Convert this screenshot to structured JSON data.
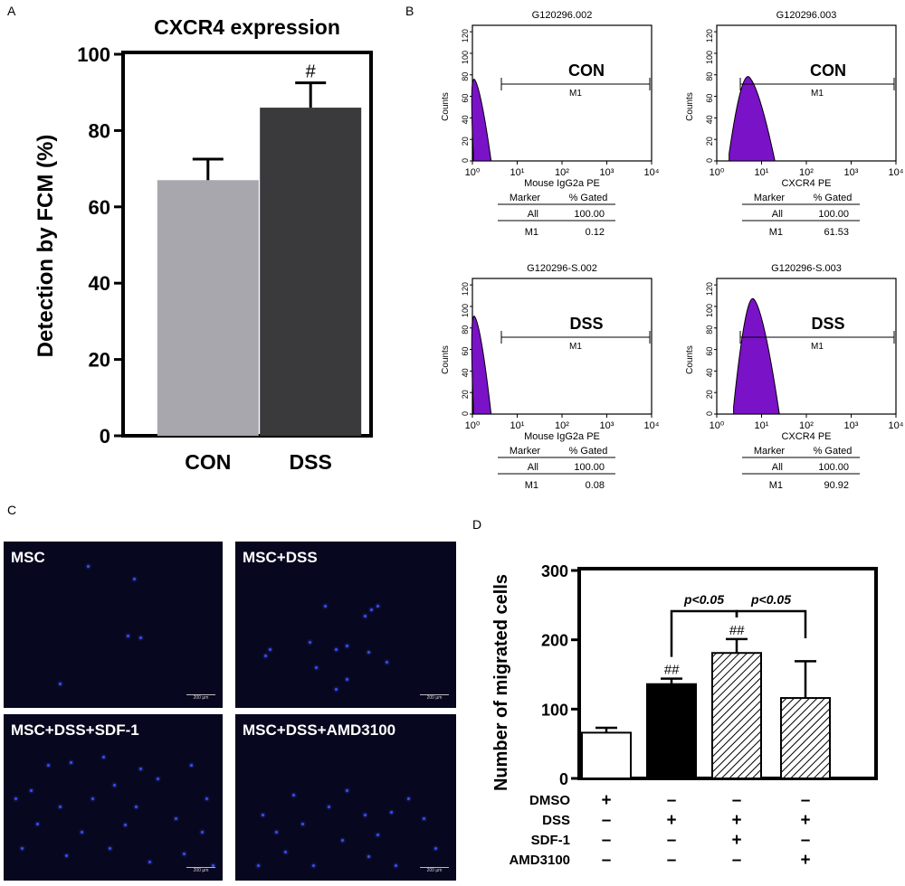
{
  "panels": {
    "a": "A",
    "b": "B",
    "c": "C",
    "d": "D"
  },
  "chart_data": [
    {
      "id": "A",
      "type": "bar",
      "title": "CXCR4 expression",
      "ylabel": "Detection by FCM (%)",
      "xlabel": "",
      "categories": [
        "CON",
        "DSS"
      ],
      "values": [
        67,
        86
      ],
      "errors": [
        5.5,
        6.5
      ],
      "colors": [
        "#a7a7ad",
        "#3a3a3c"
      ],
      "annotations": [
        "",
        "#"
      ],
      "ylim": [
        0,
        100
      ],
      "yticks": [
        "0",
        "20",
        "40",
        "60",
        "80",
        "100"
      ]
    },
    {
      "id": "B",
      "type": "histogram",
      "plots": [
        {
          "sample": "G120296.002",
          "group": "CON",
          "xlabel": "Mouse IgG2a PE",
          "all": "100.00",
          "m1": "0.12",
          "peak_log": 0.05,
          "peak_height": 0.6
        },
        {
          "sample": "G120296.003",
          "group": "CON",
          "xlabel": "CXCR4 PE",
          "all": "100.00",
          "m1": "61.53",
          "peak_log": 0.72,
          "peak_height": 0.62
        },
        {
          "sample": "G120296-S.002",
          "group": "DSS",
          "xlabel": "Mouse IgG2a PE",
          "all": "100.00",
          "m1": "0.08",
          "peak_log": 0.05,
          "peak_height": 0.72
        },
        {
          "sample": "G120296-S.003",
          "group": "DSS",
          "xlabel": "CXCR4 PE",
          "all": "100.00",
          "m1": "90.92",
          "peak_log": 0.82,
          "peak_height": 0.85
        }
      ],
      "ylabel": "Counts",
      "yticks": [
        "0",
        "20",
        "40",
        "60",
        "80",
        "100",
        "120"
      ],
      "xticks": [
        "10⁰",
        "10¹",
        "10²",
        "10³",
        "10⁴"
      ],
      "gate_label": "M1",
      "stats_header": [
        "Marker",
        "% Gated"
      ],
      "row_all": "All",
      "row_m1": "M1"
    },
    {
      "id": "D",
      "type": "bar",
      "ylabel": "Number of migrated cells",
      "values": [
        66,
        136,
        181,
        116
      ],
      "errors": [
        7,
        8,
        20,
        53
      ],
      "fills": [
        "white",
        "black",
        "hatch",
        "hatch"
      ],
      "annotations": [
        "",
        "##",
        "##",
        ""
      ],
      "ylim": [
        0,
        300
      ],
      "yticks": [
        "0",
        "100",
        "200",
        "300"
      ],
      "comparisons": [
        {
          "from": 1,
          "to": 2,
          "label": "p<0.05"
        },
        {
          "from": 2,
          "to": 3,
          "label": "p<0.05"
        }
      ],
      "treatment_rows": [
        {
          "label": "DMSO",
          "signs": [
            "+",
            "–",
            "–",
            "–"
          ]
        },
        {
          "label": "DSS",
          "signs": [
            "–",
            "+",
            "+",
            "+"
          ]
        },
        {
          "label": "SDF-1",
          "signs": [
            "–",
            "–",
            "+",
            "–"
          ]
        },
        {
          "label": "AMD3100",
          "signs": [
            "–",
            "–",
            "–",
            "+"
          ]
        }
      ]
    }
  ],
  "micrographs": [
    {
      "label": "MSC",
      "scale": "200 µm",
      "dots": [
        [
          0.38,
          0.14
        ],
        [
          0.59,
          0.22
        ],
        [
          0.56,
          0.56
        ],
        [
          0.62,
          0.57
        ],
        [
          0.25,
          0.85
        ]
      ]
    },
    {
      "label": "MSC+DSS",
      "scale": "200 µm",
      "dots": [
        [
          0.4,
          0.38
        ],
        [
          0.64,
          0.38
        ],
        [
          0.61,
          0.4
        ],
        [
          0.58,
          0.44
        ],
        [
          0.33,
          0.6
        ],
        [
          0.5,
          0.62
        ],
        [
          0.45,
          0.64
        ],
        [
          0.36,
          0.75
        ],
        [
          0.6,
          0.66
        ],
        [
          0.15,
          0.64
        ],
        [
          0.13,
          0.68
        ],
        [
          0.5,
          0.82
        ],
        [
          0.68,
          0.72
        ],
        [
          0.45,
          0.88
        ]
      ]
    },
    {
      "label": "MSC+DSS+SDF-1",
      "scale": "200 µm",
      "dots": [
        [
          0.2,
          0.3
        ],
        [
          0.3,
          0.28
        ],
        [
          0.45,
          0.25
        ],
        [
          0.12,
          0.45
        ],
        [
          0.5,
          0.42
        ],
        [
          0.7,
          0.38
        ],
        [
          0.85,
          0.3
        ],
        [
          0.25,
          0.55
        ],
        [
          0.4,
          0.5
        ],
        [
          0.6,
          0.55
        ],
        [
          0.15,
          0.65
        ],
        [
          0.35,
          0.7
        ],
        [
          0.55,
          0.66
        ],
        [
          0.78,
          0.62
        ],
        [
          0.9,
          0.7
        ],
        [
          0.08,
          0.8
        ],
        [
          0.28,
          0.84
        ],
        [
          0.48,
          0.8
        ],
        [
          0.66,
          0.88
        ],
        [
          0.82,
          0.83
        ],
        [
          0.95,
          0.9
        ],
        [
          0.62,
          0.32
        ],
        [
          0.05,
          0.5
        ],
        [
          0.92,
          0.5
        ]
      ]
    },
    {
      "label": "MSC+DSS+AMD3100",
      "scale": "200 µm",
      "dots": [
        [
          0.12,
          0.6
        ],
        [
          0.18,
          0.7
        ],
        [
          0.22,
          0.82
        ],
        [
          0.3,
          0.65
        ],
        [
          0.42,
          0.55
        ],
        [
          0.5,
          0.45
        ],
        [
          0.58,
          0.6
        ],
        [
          0.64,
          0.72
        ],
        [
          0.7,
          0.58
        ],
        [
          0.78,
          0.5
        ],
        [
          0.85,
          0.62
        ],
        [
          0.6,
          0.85
        ],
        [
          0.35,
          0.9
        ],
        [
          0.48,
          0.75
        ],
        [
          0.9,
          0.8
        ],
        [
          0.1,
          0.9
        ],
        [
          0.72,
          0.9
        ],
        [
          0.26,
          0.48
        ]
      ]
    }
  ]
}
